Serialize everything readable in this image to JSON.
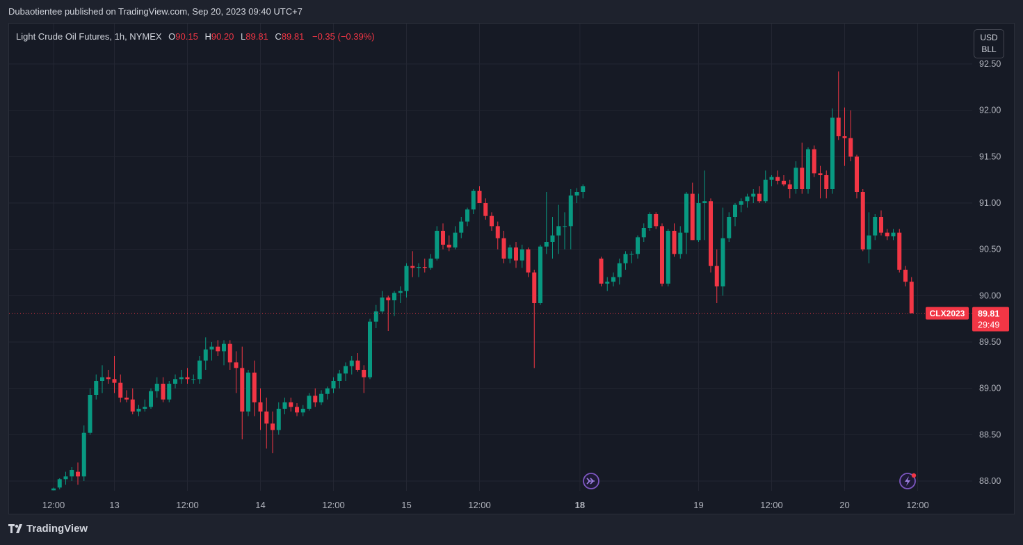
{
  "publisher_line": "Dubaotientee published on TradingView.com, Sep 20, 2023 09:40 UTC+7",
  "legend": {
    "name": "Light Crude Oil Futures, 1h, NYMEX",
    "o_label": "O",
    "o_value": "90.15",
    "h_label": "H",
    "h_value": "90.20",
    "l_label": "L",
    "l_value": "89.81",
    "c_label": "C",
    "c_value": "89.81",
    "change": "−0.35 (−0.39%)"
  },
  "currency": {
    "line1": "USD",
    "line2": "BLL"
  },
  "price_tag": {
    "symbol": "CLX2023",
    "price": "89.81",
    "countdown": "29:49"
  },
  "footer": {
    "logo_text": "TradingView"
  },
  "colors": {
    "up": "#089981",
    "down": "#f23645",
    "bg": "#161a25",
    "grid": "#232632",
    "text": "#d1d4dc"
  },
  "icons": {
    "session_break": "fast-forward-icon",
    "alert": "lightning-icon"
  },
  "chart_data": {
    "type": "candlestick",
    "yticks": [
      "88.00",
      "88.50",
      "89.00",
      "89.50",
      "90.00",
      "90.50",
      "91.00",
      "91.50",
      "92.00",
      "92.50"
    ],
    "ylim": [
      87.9,
      92.6
    ],
    "xticks": [
      {
        "label": "12:00",
        "bar": 0,
        "bold": false
      },
      {
        "label": "13",
        "bar": 10,
        "bold": false
      },
      {
        "label": "12:00",
        "bar": 22,
        "bold": false
      },
      {
        "label": "14",
        "bar": 34,
        "bold": false
      },
      {
        "label": "12:00",
        "bar": 46,
        "bold": false
      },
      {
        "label": "15",
        "bar": 58,
        "bold": false
      },
      {
        "label": "12:00",
        "bar": 70,
        "bold": false
      },
      {
        "label": "18",
        "bar": 86.5,
        "bold": true
      },
      {
        "label": "19",
        "bar": 106,
        "bold": false
      },
      {
        "label": "12:00",
        "bar": 118,
        "bold": false
      },
      {
        "label": "20",
        "bar": 130,
        "bold": false
      },
      {
        "label": "12:00",
        "bar": 142,
        "bold": false
      }
    ],
    "last_price": 89.81,
    "candles": [
      [
        87.9,
        87.93,
        87.9,
        87.92
      ],
      [
        87.93,
        88.03,
        87.91,
        88.02
      ],
      [
        88.02,
        88.1,
        87.96,
        88.05
      ],
      [
        88.05,
        88.15,
        88.0,
        88.12
      ],
      [
        88.1,
        88.2,
        87.96,
        88.05
      ],
      [
        88.05,
        88.6,
        88.0,
        88.52
      ],
      [
        88.52,
        89.0,
        88.5,
        88.93
      ],
      [
        88.93,
        89.15,
        88.88,
        89.08
      ],
      [
        89.08,
        89.25,
        88.95,
        89.12
      ],
      [
        89.12,
        89.2,
        89.05,
        89.1
      ],
      [
        89.1,
        89.35,
        88.95,
        89.06
      ],
      [
        89.06,
        89.15,
        88.85,
        88.9
      ],
      [
        88.9,
        88.98,
        88.85,
        88.88
      ],
      [
        88.88,
        89.0,
        88.72,
        88.75
      ],
      [
        88.75,
        88.82,
        88.7,
        88.78
      ],
      [
        88.78,
        88.88,
        88.75,
        88.8
      ],
      [
        88.8,
        89.0,
        88.78,
        88.97
      ],
      [
        88.97,
        89.12,
        88.9,
        89.05
      ],
      [
        89.05,
        89.12,
        88.85,
        88.88
      ],
      [
        88.88,
        89.08,
        88.85,
        89.05
      ],
      [
        89.05,
        89.15,
        89.0,
        89.1
      ],
      [
        89.1,
        89.2,
        89.05,
        89.12
      ],
      [
        89.12,
        89.22,
        89.05,
        89.1
      ],
      [
        89.1,
        89.15,
        89.05,
        89.1
      ],
      [
        89.1,
        89.35,
        89.05,
        89.3
      ],
      [
        89.3,
        89.55,
        89.2,
        89.42
      ],
      [
        89.42,
        89.5,
        89.3,
        89.45
      ],
      [
        89.45,
        89.52,
        89.35,
        89.4
      ],
      [
        89.4,
        89.52,
        89.25,
        89.48
      ],
      [
        89.48,
        89.52,
        89.2,
        89.28
      ],
      [
        89.28,
        89.4,
        88.95,
        89.22
      ],
      [
        89.22,
        89.45,
        88.45,
        88.75
      ],
      [
        88.75,
        89.2,
        88.7,
        89.17
      ],
      [
        89.17,
        89.3,
        88.7,
        88.85
      ],
      [
        88.85,
        89.0,
        88.55,
        88.75
      ],
      [
        88.75,
        88.9,
        88.35,
        88.62
      ],
      [
        88.62,
        88.75,
        88.3,
        88.55
      ],
      [
        88.55,
        88.85,
        88.5,
        88.78
      ],
      [
        88.78,
        88.9,
        88.72,
        88.85
      ],
      [
        88.85,
        88.9,
        88.75,
        88.8
      ],
      [
        88.8,
        88.84,
        88.7,
        88.74
      ],
      [
        88.74,
        88.82,
        88.7,
        88.78
      ],
      [
        88.78,
        88.95,
        88.76,
        88.92
      ],
      [
        88.92,
        89.0,
        88.8,
        88.85
      ],
      [
        88.85,
        88.98,
        88.82,
        88.94
      ],
      [
        88.94,
        89.02,
        88.88,
        89.0
      ],
      [
        89.0,
        89.12,
        88.95,
        89.08
      ],
      [
        89.08,
        89.2,
        89.0,
        89.16
      ],
      [
        89.16,
        89.28,
        89.08,
        89.24
      ],
      [
        89.24,
        89.35,
        89.15,
        89.3
      ],
      [
        89.3,
        89.38,
        89.18,
        89.2
      ],
      [
        89.2,
        89.25,
        88.95,
        89.12
      ],
      [
        89.12,
        89.75,
        89.1,
        89.72
      ],
      [
        89.72,
        89.9,
        89.65,
        89.83
      ],
      [
        89.83,
        90.05,
        89.8,
        89.98
      ],
      [
        89.98,
        90.0,
        89.62,
        89.95
      ],
      [
        89.95,
        90.05,
        89.78,
        90.03
      ],
      [
        90.03,
        90.1,
        89.92,
        90.05
      ],
      [
        90.05,
        90.35,
        89.98,
        90.32
      ],
      [
        90.32,
        90.48,
        90.2,
        90.3
      ],
      [
        90.3,
        90.35,
        90.2,
        90.31
      ],
      [
        90.31,
        90.4,
        90.25,
        90.3
      ],
      [
        90.3,
        90.45,
        90.28,
        90.4
      ],
      [
        90.4,
        90.75,
        90.38,
        90.7
      ],
      [
        90.7,
        90.78,
        90.5,
        90.55
      ],
      [
        90.55,
        90.65,
        90.48,
        90.52
      ],
      [
        90.52,
        90.75,
        90.5,
        90.68
      ],
      [
        90.68,
        90.85,
        90.62,
        90.8
      ],
      [
        90.8,
        90.95,
        90.75,
        90.93
      ],
      [
        90.93,
        91.15,
        90.88,
        91.13
      ],
      [
        91.13,
        91.18,
        91.0,
        91.0
      ],
      [
        91.0,
        91.05,
        90.82,
        90.86
      ],
      [
        90.86,
        90.9,
        90.7,
        90.75
      ],
      [
        90.75,
        90.8,
        90.5,
        90.62
      ],
      [
        90.62,
        90.7,
        90.35,
        90.4
      ],
      [
        90.4,
        90.55,
        90.35,
        90.52
      ],
      [
        90.52,
        90.58,
        90.3,
        90.38
      ],
      [
        90.38,
        90.55,
        90.3,
        90.5
      ],
      [
        90.5,
        90.52,
        90.2,
        90.25
      ],
      [
        90.25,
        90.28,
        89.22,
        89.92
      ],
      [
        89.92,
        90.55,
        89.9,
        90.53
      ],
      [
        90.53,
        91.12,
        90.45,
        90.58
      ],
      [
        90.58,
        90.85,
        90.4,
        90.65
      ],
      [
        90.65,
        90.98,
        90.45,
        90.75
      ],
      [
        90.75,
        90.9,
        90.5,
        90.75
      ],
      [
        90.75,
        91.15,
        90.5,
        91.08
      ],
      [
        91.08,
        91.16,
        91.0,
        91.12
      ],
      [
        91.12,
        91.2,
        91.05,
        91.18
      ],
      [
        90.4,
        90.42,
        90.1,
        90.13
      ],
      [
        90.13,
        90.2,
        90.05,
        90.15
      ],
      [
        90.15,
        90.25,
        90.1,
        90.2
      ],
      [
        90.2,
        90.4,
        90.12,
        90.35
      ],
      [
        90.35,
        90.48,
        90.28,
        90.45
      ],
      [
        90.45,
        90.48,
        90.35,
        90.45
      ],
      [
        90.45,
        90.65,
        90.4,
        90.63
      ],
      [
        90.63,
        90.78,
        90.58,
        90.73
      ],
      [
        90.73,
        90.9,
        90.7,
        90.88
      ],
      [
        90.88,
        90.9,
        90.72,
        90.75
      ],
      [
        90.75,
        90.78,
        90.1,
        90.13
      ],
      [
        90.13,
        90.72,
        90.1,
        90.7
      ],
      [
        90.7,
        90.78,
        90.42,
        90.45
      ],
      [
        90.45,
        90.75,
        90.4,
        90.68
      ],
      [
        90.68,
        91.12,
        90.45,
        91.1
      ],
      [
        91.1,
        91.22,
        90.6,
        90.6
      ],
      [
        90.6,
        91.1,
        90.58,
        91.0
      ],
      [
        91.0,
        91.35,
        90.6,
        91.02
      ],
      [
        91.02,
        91.05,
        90.25,
        90.32
      ],
      [
        90.32,
        90.5,
        89.92,
        90.1
      ],
      [
        90.1,
        90.95,
        90.0,
        90.62
      ],
      [
        90.62,
        90.9,
        90.58,
        90.85
      ],
      [
        90.85,
        91.0,
        90.75,
        90.98
      ],
      [
        90.98,
        91.05,
        90.9,
        91.02
      ],
      [
        91.02,
        91.1,
        90.95,
        91.07
      ],
      [
        91.07,
        91.15,
        91.0,
        91.1
      ],
      [
        91.1,
        91.18,
        91.0,
        91.02
      ],
      [
        91.02,
        91.35,
        91.0,
        91.25
      ],
      [
        91.25,
        91.3,
        91.18,
        91.28
      ],
      [
        91.28,
        91.35,
        91.2,
        91.24
      ],
      [
        91.24,
        91.3,
        91.18,
        91.2
      ],
      [
        91.2,
        91.25,
        91.05,
        91.15
      ],
      [
        91.15,
        91.45,
        91.1,
        91.38
      ],
      [
        91.38,
        91.65,
        91.1,
        91.15
      ],
      [
        91.15,
        91.6,
        91.1,
        91.58
      ],
      [
        91.58,
        91.62,
        91.28,
        91.32
      ],
      [
        91.32,
        91.4,
        91.05,
        91.3
      ],
      [
        91.3,
        91.35,
        91.05,
        91.15
      ],
      [
        91.15,
        92.02,
        91.1,
        91.92
      ],
      [
        91.92,
        92.42,
        91.68,
        91.72
      ],
      [
        91.72,
        92.03,
        91.4,
        91.7
      ],
      [
        91.7,
        92.0,
        91.45,
        91.5
      ],
      [
        91.5,
        91.52,
        91.05,
        91.12
      ],
      [
        91.12,
        91.15,
        90.48,
        90.5
      ],
      [
        90.5,
        90.9,
        90.35,
        90.65
      ],
      [
        90.65,
        90.88,
        90.6,
        90.85
      ],
      [
        90.85,
        90.92,
        90.65,
        90.68
      ],
      [
        90.68,
        90.72,
        90.6,
        90.64
      ],
      [
        90.64,
        90.72,
        90.6,
        90.68
      ],
      [
        90.68,
        90.72,
        90.25,
        90.28
      ],
      [
        90.28,
        90.32,
        90.1,
        90.15
      ],
      [
        90.15,
        90.2,
        89.81,
        89.81
      ]
    ]
  }
}
